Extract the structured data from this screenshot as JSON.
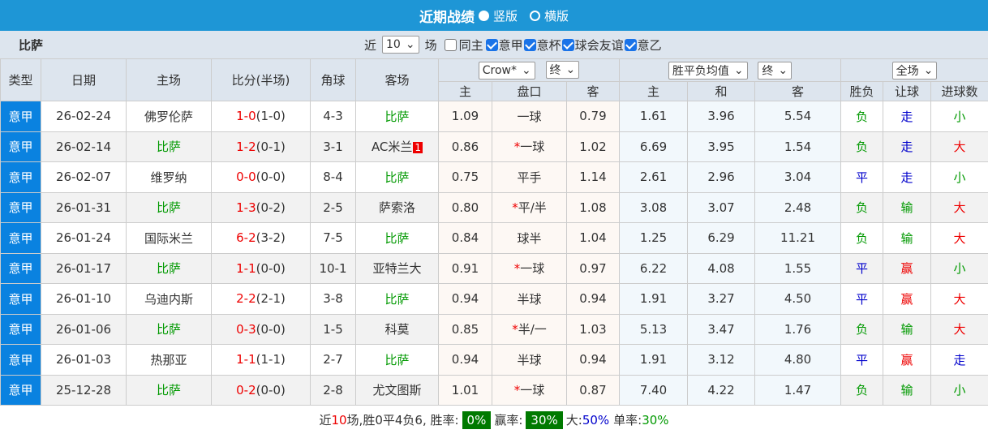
{
  "title": {
    "text": "近期战绩",
    "opt1": "竖版",
    "opt2": "横版"
  },
  "filter": {
    "team": "比萨",
    "near": "近",
    "count": "10",
    "unit": "场",
    "same_home": "同主",
    "leagues": [
      "意甲",
      "意杯",
      "球会友谊",
      "意乙"
    ]
  },
  "selects": {
    "company": "Crow*",
    "company_stage": "终",
    "euro": "胜平负均值",
    "euro_stage": "终",
    "period": "全场"
  },
  "headers": {
    "type": "类型",
    "date": "日期",
    "home": "主场",
    "score": "比分(半场)",
    "corner": "角球",
    "away": "客场",
    "ah_home": "主",
    "ah_line": "盘口",
    "ah_away": "客",
    "eu_home": "主",
    "eu_draw": "和",
    "eu_away": "客",
    "wl": "胜负",
    "hc": "让球",
    "goals": "进球数"
  },
  "colors": {
    "title_bar": "#1e96d6",
    "type_cell": "#0a82e0",
    "win_badge": "#007a00",
    "green": "#009900",
    "red": "#ee0000",
    "blue": "#0000cc"
  },
  "rows": [
    {
      "type": "意甲",
      "date": "26-02-24",
      "home": "佛罗伦萨",
      "ft": "1-0",
      "ht": "(1-0)",
      "corner": "4-3",
      "away": "比萨",
      "card": "",
      "ah_home": "1.09",
      "ah_line": "一球",
      "star": false,
      "ah_away": "0.79",
      "eu_home": "1.61",
      "eu_draw": "3.96",
      "eu_away": "5.54",
      "wl": "负",
      "hc": "走",
      "goals": "小",
      "pisa_home": false
    },
    {
      "type": "意甲",
      "date": "26-02-14",
      "home": "比萨",
      "ft": "1-2",
      "ht": "(0-1)",
      "corner": "3-1",
      "away": "AC米兰",
      "card": "1",
      "ah_home": "0.86",
      "ah_line": "一球",
      "star": true,
      "ah_away": "1.02",
      "eu_home": "6.69",
      "eu_draw": "3.95",
      "eu_away": "1.54",
      "wl": "负",
      "hc": "走",
      "goals": "大",
      "pisa_home": true
    },
    {
      "type": "意甲",
      "date": "26-02-07",
      "home": "维罗纳",
      "ft": "0-0",
      "ht": "(0-0)",
      "corner": "8-4",
      "away": "比萨",
      "card": "",
      "ah_home": "0.75",
      "ah_line": "平手",
      "star": false,
      "ah_away": "1.14",
      "eu_home": "2.61",
      "eu_draw": "2.96",
      "eu_away": "3.04",
      "wl": "平",
      "hc": "走",
      "goals": "小",
      "pisa_home": false
    },
    {
      "type": "意甲",
      "date": "26-01-31",
      "home": "比萨",
      "ft": "1-3",
      "ht": "(0-2)",
      "corner": "2-5",
      "away": "萨索洛",
      "card": "",
      "ah_home": "0.80",
      "ah_line": "平/半",
      "star": true,
      "ah_away": "1.08",
      "eu_home": "3.08",
      "eu_draw": "3.07",
      "eu_away": "2.48",
      "wl": "负",
      "hc": "输",
      "goals": "大",
      "pisa_home": true
    },
    {
      "type": "意甲",
      "date": "26-01-24",
      "home": "国际米兰",
      "ft": "6-2",
      "ht": "(3-2)",
      "corner": "7-5",
      "away": "比萨",
      "card": "",
      "ah_home": "0.84",
      "ah_line": "球半",
      "star": false,
      "ah_away": "1.04",
      "eu_home": "1.25",
      "eu_draw": "6.29",
      "eu_away": "11.21",
      "wl": "负",
      "hc": "输",
      "goals": "大",
      "pisa_home": false
    },
    {
      "type": "意甲",
      "date": "26-01-17",
      "home": "比萨",
      "ft": "1-1",
      "ht": "(0-0)",
      "corner": "10-1",
      "away": "亚特兰大",
      "card": "",
      "ah_home": "0.91",
      "ah_line": "一球",
      "star": true,
      "ah_away": "0.97",
      "eu_home": "6.22",
      "eu_draw": "4.08",
      "eu_away": "1.55",
      "wl": "平",
      "hc": "赢",
      "goals": "小",
      "pisa_home": true
    },
    {
      "type": "意甲",
      "date": "26-01-10",
      "home": "乌迪内斯",
      "ft": "2-2",
      "ht": "(2-1)",
      "corner": "3-8",
      "away": "比萨",
      "card": "",
      "ah_home": "0.94",
      "ah_line": "半球",
      "star": false,
      "ah_away": "0.94",
      "eu_home": "1.91",
      "eu_draw": "3.27",
      "eu_away": "4.50",
      "wl": "平",
      "hc": "赢",
      "goals": "大",
      "pisa_home": false
    },
    {
      "type": "意甲",
      "date": "26-01-06",
      "home": "比萨",
      "ft": "0-3",
      "ht": "(0-0)",
      "corner": "1-5",
      "away": "科莫",
      "card": "",
      "ah_home": "0.85",
      "ah_line": "半/一",
      "star": true,
      "ah_away": "1.03",
      "eu_home": "5.13",
      "eu_draw": "3.47",
      "eu_away": "1.76",
      "wl": "负",
      "hc": "输",
      "goals": "大",
      "pisa_home": true
    },
    {
      "type": "意甲",
      "date": "26-01-03",
      "home": "热那亚",
      "ft": "1-1",
      "ht": "(1-1)",
      "corner": "2-7",
      "away": "比萨",
      "card": "",
      "ah_home": "0.94",
      "ah_line": "半球",
      "star": false,
      "ah_away": "0.94",
      "eu_home": "1.91",
      "eu_draw": "3.12",
      "eu_away": "4.80",
      "wl": "平",
      "hc": "赢",
      "goals": "走",
      "pisa_home": false
    },
    {
      "type": "意甲",
      "date": "25-12-28",
      "home": "比萨",
      "ft": "0-2",
      "ht": "(0-0)",
      "corner": "2-8",
      "away": "尤文图斯",
      "card": "",
      "ah_home": "1.01",
      "ah_line": "一球",
      "star": true,
      "ah_away": "0.87",
      "eu_home": "7.40",
      "eu_draw": "4.22",
      "eu_away": "1.47",
      "wl": "负",
      "hc": "输",
      "goals": "小",
      "pisa_home": true
    }
  ],
  "footer": {
    "p1": "近",
    "n": "10",
    "p2": "场,胜0平4负6, 胜率:",
    "win_rate": "0%",
    "p3": "赢率:",
    "cover_rate": "30%",
    "p4": "大:",
    "over_rate": "50%",
    "p5": "单率:",
    "odd_rate": "30%"
  }
}
